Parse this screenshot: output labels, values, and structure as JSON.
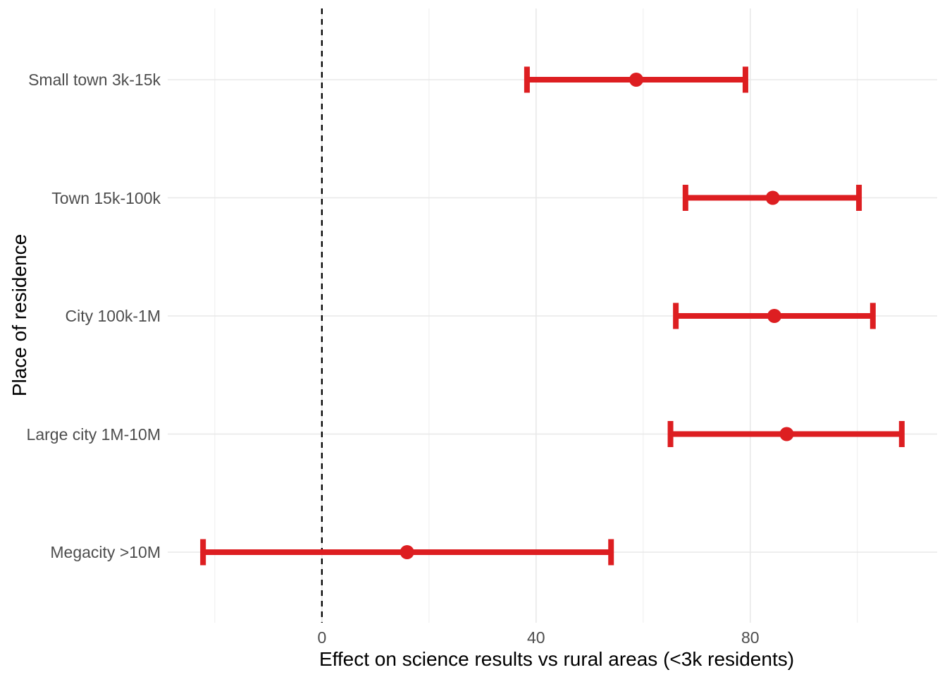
{
  "chart_data": {
    "type": "scatter",
    "subtype": "dot-whisker-forest-plot",
    "title": "",
    "xlabel": "Effect on science results vs rural areas (<3k residents)",
    "ylabel": "Place of residence",
    "categories": [
      "Small town 3k-15k",
      "Town 15k-100k",
      "City 100k-1M",
      "Large city 1M-10M",
      "Megacity >10M"
    ],
    "points": [
      {
        "category": "Small town 3k-15k",
        "estimate": 58.7,
        "ci_low": 38.3,
        "ci_high": 79.1
      },
      {
        "category": "Town 15k-100k",
        "estimate": 84.2,
        "ci_low": 67.9,
        "ci_high": 100.3
      },
      {
        "category": "City 100k-1M",
        "estimate": 84.5,
        "ci_low": 66.1,
        "ci_high": 102.9
      },
      {
        "category": "Large city 1M-10M",
        "estimate": 86.8,
        "ci_low": 65.1,
        "ci_high": 108.3
      },
      {
        "category": "Megacity >10M",
        "estimate": 15.9,
        "ci_low": -22.2,
        "ci_high": 54.0
      }
    ],
    "reference_line_x": 0,
    "x_ticks": [
      0,
      40,
      80
    ],
    "x_minor_ticks": [
      -20,
      20,
      60,
      100
    ],
    "xlim": [
      -28.8,
      114.9
    ],
    "grid": true,
    "legend": false,
    "colors": {
      "point_and_bar": "#dd1e21",
      "grid_major": "#e8e8e8",
      "grid_minor": "#f0f0f0",
      "reference_line": "#000000",
      "axis_text": "#4d4d4d",
      "axis_title": "#000000",
      "background": "#ffffff"
    }
  }
}
